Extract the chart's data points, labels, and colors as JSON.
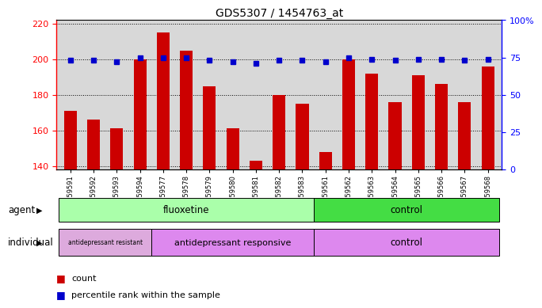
{
  "title": "GDS5307 / 1454763_at",
  "samples": [
    "GSM1059591",
    "GSM1059592",
    "GSM1059593",
    "GSM1059594",
    "GSM1059577",
    "GSM1059578",
    "GSM1059579",
    "GSM1059580",
    "GSM1059581",
    "GSM1059582",
    "GSM1059583",
    "GSM1059561",
    "GSM1059562",
    "GSM1059563",
    "GSM1059564",
    "GSM1059565",
    "GSM1059566",
    "GSM1059567",
    "GSM1059568"
  ],
  "counts": [
    171,
    166,
    161,
    200,
    215,
    205,
    185,
    161,
    143,
    180,
    175,
    148,
    200,
    192,
    176,
    191,
    186,
    176,
    196
  ],
  "percentiles": [
    73,
    73,
    72,
    75,
    75,
    75,
    73,
    72,
    71,
    73,
    73,
    72,
    75,
    74,
    73,
    74,
    74,
    73,
    74
  ],
  "ylim_left": [
    138,
    222
  ],
  "ylim_right": [
    0,
    100
  ],
  "yticks_left": [
    140,
    160,
    180,
    200,
    220
  ],
  "yticks_right": [
    0,
    25,
    50,
    75,
    100
  ],
  "bar_color": "#cc0000",
  "dot_color": "#0000cc",
  "fluoxetine_color": "#aaffaa",
  "control_agent_color": "#44dd44",
  "resist_color": "#ddaadd",
  "responsive_color": "#dd88ee",
  "control_ind_color": "#dd88ee",
  "plot_bg_color": "#d8d8d8",
  "legend_count_label": "count",
  "legend_percentile_label": "percentile rank within the sample"
}
